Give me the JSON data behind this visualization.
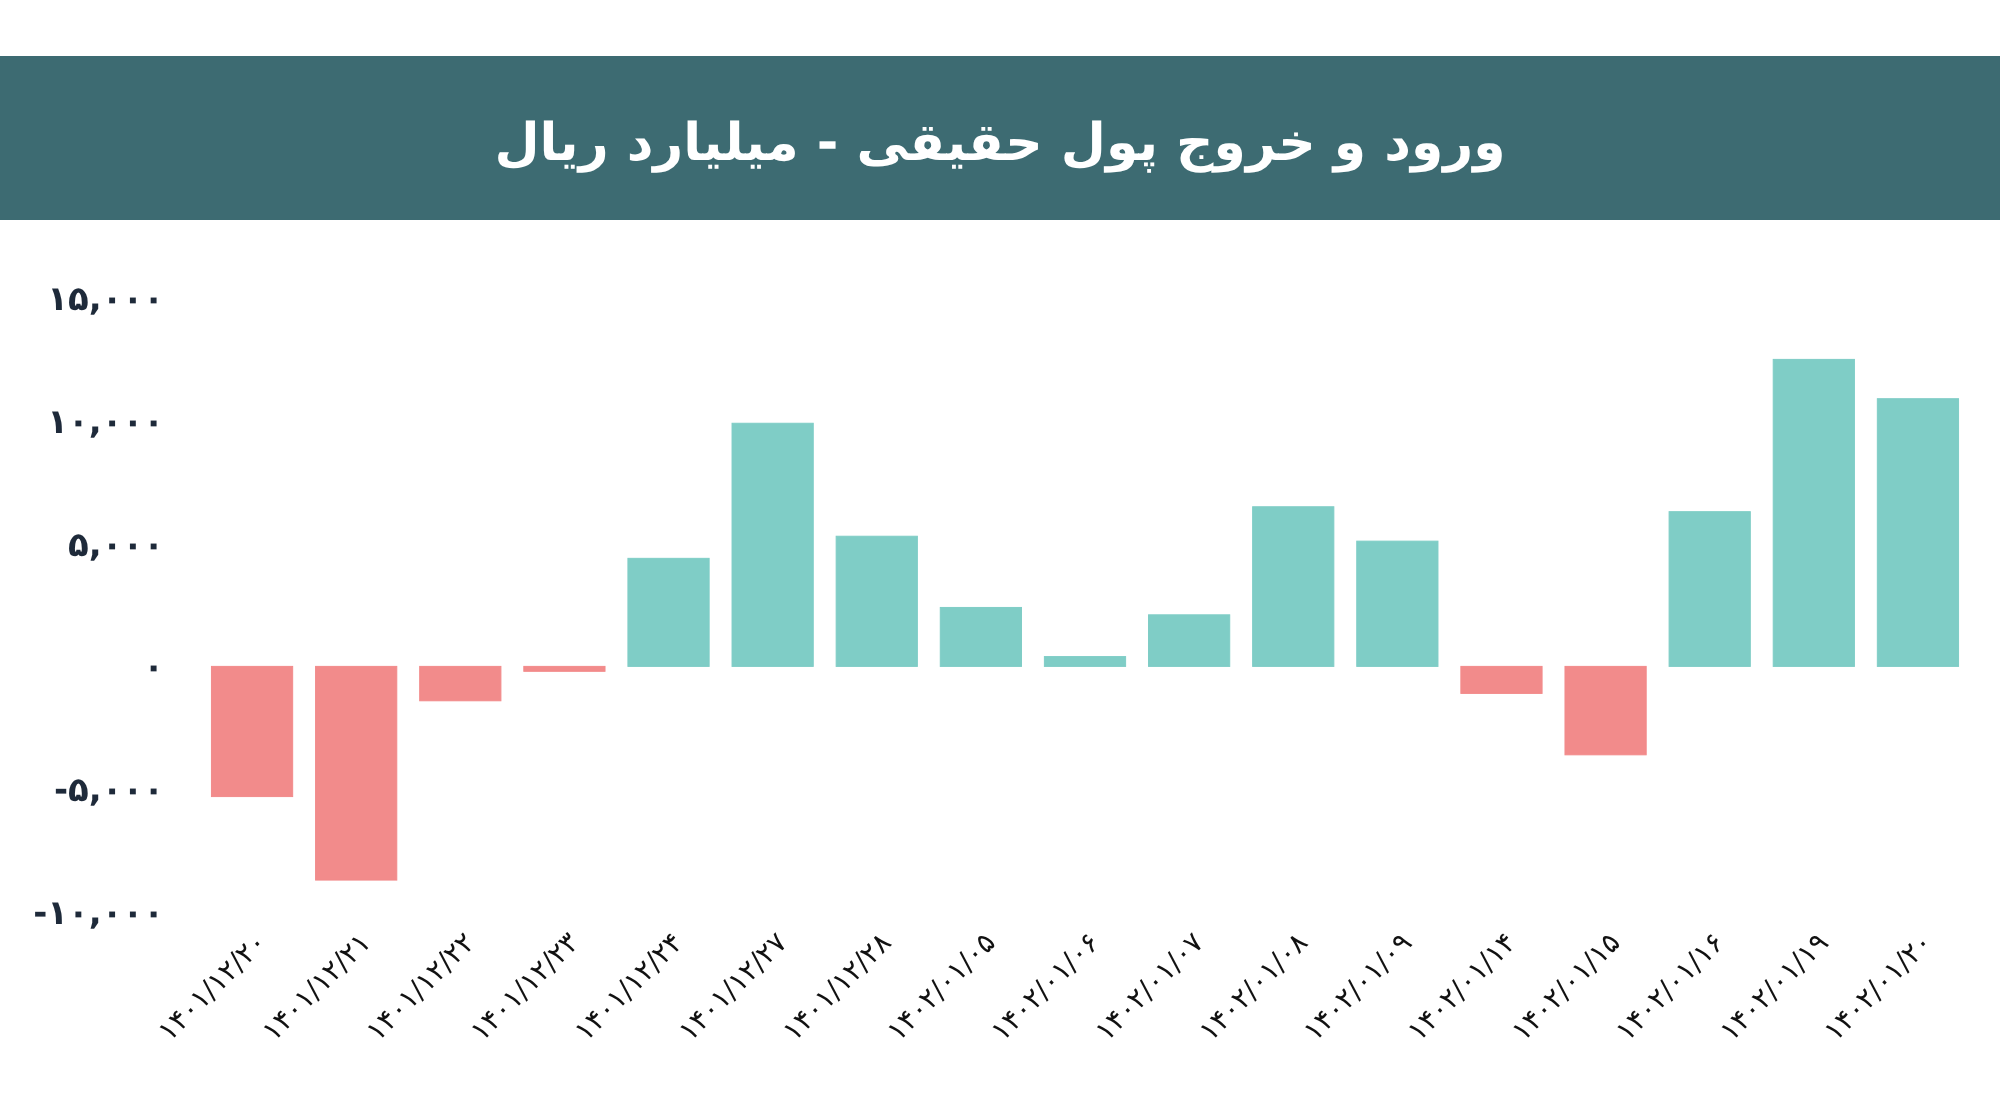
{
  "chart_data": {
    "type": "bar",
    "title": "ورود و خروج پول حقیقی - میلیارد ریال",
    "categories": [
      "۱۴۰۱/۱۲/۲۰",
      "۱۴۰۱/۱۲/۲۱",
      "۱۴۰۱/۱۲/۲۲",
      "۱۴۰۱/۱۲/۲۳",
      "۱۴۰۱/۱۲/۲۴",
      "۱۴۰۱/۱۲/۲۷",
      "۱۴۰۱/۱۲/۲۸",
      "۱۴۰۲/۰۱/۰۵",
      "۱۴۰۲/۰۱/۰۶",
      "۱۴۰۲/۰۱/۰۷",
      "۱۴۰۲/۰۱/۰۸",
      "۱۴۰۲/۰۱/۰۹",
      "۱۴۰۲/۰۱/۱۴",
      "۱۴۰۲/۰۱/۱۵",
      "۱۴۰۲/۰۱/۱۶",
      "۱۴۰۲/۰۱/۱۹",
      "۱۴۰۲/۰۱/۲۰"
    ],
    "values": [
      -5300,
      -8700,
      -1400,
      -200,
      4400,
      9900,
      5300,
      2400,
      400,
      2100,
      6500,
      5100,
      -1100,
      -3600,
      6300,
      12500,
      10900
    ],
    "colors": [
      "#f28b8b",
      "#f28b8b",
      "#f28b8b",
      "#f28b8b",
      "#7fcdc6",
      "#7fcdc6",
      "#7fcdc6",
      "#7fcdc6",
      "#7fcdc6",
      "#7fcdc6",
      "#7fcdc6",
      "#7fcdc6",
      "#f28b8b",
      "#f28b8b",
      "#7fcdc6",
      "#7fcdc6",
      "#7fcdc6"
    ],
    "ylim": [
      -10000,
      15000
    ],
    "yticks": [
      {
        "value": -10000,
        "label": "-۱۰,۰۰۰"
      },
      {
        "value": -5000,
        "label": "-۵,۰۰۰"
      },
      {
        "value": 0,
        "label": "۰"
      },
      {
        "value": 5000,
        "label": "۵,۰۰۰"
      },
      {
        "value": 10000,
        "label": "۱۰,۰۰۰"
      },
      {
        "value": 15000,
        "label": "۱۵,۰۰۰"
      }
    ]
  }
}
